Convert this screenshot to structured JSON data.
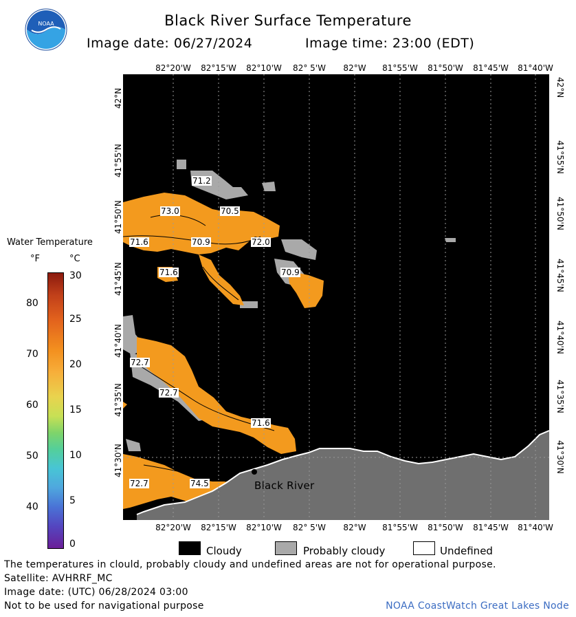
{
  "header": {
    "title": "Black River Surface Temperature",
    "image_date": "Image date: 06/27/2024",
    "image_time": "Image time: 23:00 (EDT)",
    "logo_text": "NOAA"
  },
  "axes": {
    "longitude_ticks": [
      "82°20'W",
      "82°15'W",
      "82°10'W",
      "82° 5'W",
      "82°W",
      "81°55'W",
      "81°50'W",
      "81°45'W",
      "81°40'W"
    ],
    "latitude_ticks": [
      "42°N",
      "41°55'N",
      "41°50'N",
      "41°45'N",
      "41°40'N",
      "41°35'N",
      "41°30'N"
    ]
  },
  "map": {
    "place_name": "Black River",
    "temperature_labels": [
      "71.2",
      "73.0",
      "70.5",
      "71.6",
      "70.9",
      "72.0",
      "71.6",
      "70.9",
      "72.7",
      "72.7",
      "71.6",
      "72.7",
      "74.5"
    ],
    "colors": {
      "cloudy": "#000000",
      "probably_cloudy": "#a9a9a9",
      "water_warm": "#f39a1e",
      "land": "#6f6f6f",
      "undefined": "#ffffff"
    }
  },
  "legend": {
    "title": "Water Temperature",
    "unit_f": "°F",
    "unit_c": "°C",
    "f_ticks": [
      "80",
      "70",
      "60",
      "50",
      "40"
    ],
    "c_ticks": [
      "30",
      "25",
      "20",
      "15",
      "10",
      "5",
      "0"
    ],
    "cloudy": "Cloudy",
    "probably_cloudy": "Probably cloudy",
    "undefined": "Undefined"
  },
  "footer": {
    "disclaimer": "The temperatures in clould, probably cloudy and undefined areas are not for operational purpose.",
    "satellite": "Satellite: AVHRRF_MC",
    "utc_date": "Image date: (UTC) 06/28/2024  03:00",
    "navigation": "Not to be used for navigational purpose",
    "credit": "NOAA CoastWatch Great Lakes Node"
  }
}
